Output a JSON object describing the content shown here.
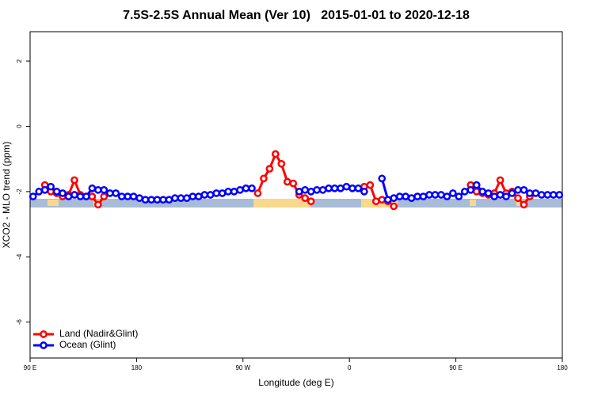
{
  "chart_data": {
    "type": "line",
    "title": "7.5S-2.5S Annual Mean (Ver 10)   2015-01-01 to 2020-12-18",
    "xlabel": "Longitude (deg E)",
    "ylabel": "XCO2 - MLO trend (ppm)",
    "xlim": [
      90,
      540
    ],
    "ylim": [
      -7.1,
      2.9
    ],
    "xticks": [
      {
        "value": 90,
        "label": "90 E"
      },
      {
        "value": 180,
        "label": "180"
      },
      {
        "value": 270,
        "label": "90 W"
      },
      {
        "value": 360,
        "label": "0"
      },
      {
        "value": 450,
        "label": "90 E"
      },
      {
        "value": 540,
        "label": "180"
      }
    ],
    "yticks": [
      2,
      0,
      -2,
      -4,
      -6
    ],
    "legend": "bottom-left",
    "x": [
      92.5,
      97.5,
      102.5,
      107.5,
      112.5,
      117.5,
      122.5,
      127.5,
      132.5,
      137.5,
      142.5,
      147.5,
      152.5,
      157.5,
      162.5,
      167.5,
      172.5,
      177.5,
      182.5,
      187.5,
      192.5,
      197.5,
      202.5,
      207.5,
      212.5,
      217.5,
      222.5,
      227.5,
      232.5,
      237.5,
      242.5,
      247.5,
      252.5,
      257.5,
      262.5,
      267.5,
      272.5,
      277.5,
      282.5,
      287.5,
      292.5,
      297.5,
      302.5,
      307.5,
      312.5,
      317.5,
      322.5,
      327.5,
      332.5,
      337.5,
      342.5,
      347.5,
      352.5,
      357.5,
      362.5,
      367.5,
      372.5,
      377.5,
      382.5,
      387.5,
      392.5,
      397.5,
      402.5,
      407.5,
      412.5,
      417.5,
      422.5,
      427.5,
      432.5,
      437.5,
      442.5,
      447.5,
      452.5,
      457.5,
      462.5,
      467.5,
      472.5,
      477.5,
      482.5,
      487.5,
      492.5,
      497.5,
      502.5,
      507.5,
      512.5,
      517.5,
      522.5,
      527.5,
      532.5,
      537.5
    ],
    "series": [
      {
        "name": "Land (Nadir&Glint)",
        "color": "#ff0000",
        "values": [
          null,
          null,
          -1.8,
          -2.0,
          -2.05,
          -2.15,
          -2.1,
          -1.65,
          -2.1,
          -2.15,
          -2.15,
          -2.4,
          -2.15,
          null,
          null,
          null,
          null,
          null,
          null,
          null,
          null,
          null,
          null,
          null,
          null,
          null,
          null,
          null,
          null,
          null,
          null,
          null,
          null,
          null,
          null,
          null,
          null,
          null,
          -2.05,
          -1.6,
          -1.3,
          -0.85,
          -1.15,
          -1.7,
          -1.75,
          -2.1,
          -2.2,
          -2.3,
          null,
          null,
          null,
          null,
          null,
          null,
          null,
          null,
          -1.85,
          -1.8,
          -2.3,
          -2.25,
          -2.3,
          -2.45,
          null,
          null,
          null,
          null,
          null,
          null,
          null,
          null,
          null,
          null,
          null,
          null,
          -1.8,
          -2.0,
          -2.05,
          -2.1,
          -2.05,
          -1.65,
          -2.05,
          -2.0,
          -2.2,
          -2.4,
          -2.15,
          null,
          null,
          null,
          null,
          null
        ]
      },
      {
        "name": "Ocean (Glint)",
        "color": "#0000ff",
        "values": [
          -2.15,
          -2.0,
          -1.95,
          -1.85,
          -2.0,
          -2.05,
          -2.15,
          -2.1,
          -2.15,
          -2.15,
          -1.9,
          -1.95,
          -1.95,
          -2.05,
          -2.05,
          -2.15,
          -2.15,
          -2.15,
          -2.2,
          -2.25,
          -2.25,
          -2.25,
          -2.25,
          -2.25,
          -2.2,
          -2.2,
          -2.2,
          -2.15,
          -2.15,
          -2.1,
          -2.1,
          -2.05,
          -2.05,
          -2.0,
          -2.0,
          -1.95,
          -1.9,
          -1.9,
          null,
          null,
          null,
          null,
          null,
          null,
          null,
          -2.0,
          -1.95,
          -2.0,
          -1.95,
          -1.95,
          -1.9,
          -1.9,
          -1.9,
          -1.85,
          -1.9,
          -1.9,
          -2.0,
          null,
          null,
          -1.6,
          -2.25,
          -2.2,
          -2.15,
          -2.15,
          -2.2,
          -2.15,
          -2.15,
          -2.1,
          -2.1,
          -2.1,
          -2.15,
          -2.05,
          -2.15,
          -2.0,
          -1.95,
          -1.8,
          -2.0,
          -2.05,
          -2.15,
          -2.1,
          -2.15,
          -2.05,
          -1.95,
          -1.95,
          -2.05,
          -2.05,
          -2.1,
          -2.1,
          -2.1,
          -2.1
        ]
      }
    ]
  }
}
